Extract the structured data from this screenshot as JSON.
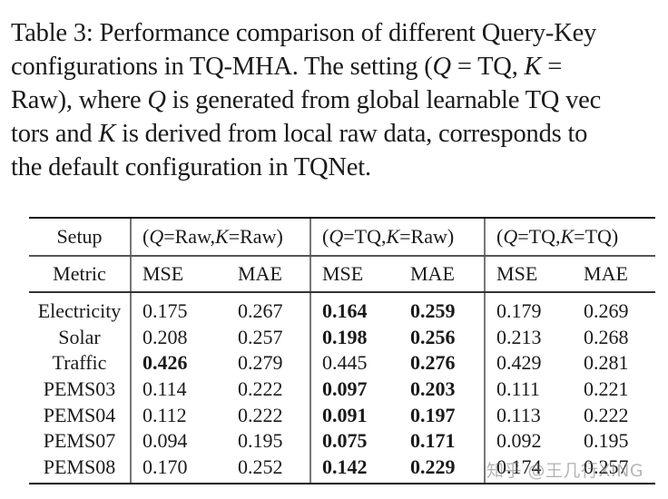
{
  "caption": {
    "lines": [
      "Table 3: Performance comparison of different Query-Key",
      "configurations in TQ-MHA. The setting (Q = TQ, K =",
      "Raw), where Q is generated from global learnable TQ vec-",
      "tors and K is derived from local raw data, corresponds to",
      "the default configuration in TQNet."
    ],
    "l1": "Table 3: Performance comparison of different Query-Key",
    "l2a": "configurations in TQ-MHA. The setting (",
    "l2q": "Q",
    "l2b": " = TQ, ",
    "l2k": "K",
    "l2c": " =",
    "l3a": "Raw), where ",
    "l3q": "Q",
    "l3b": " is generated from global learnable TQ vec",
    "l4a": "tors and ",
    "l4k": "K",
    "l4b": " is derived from local raw data, corresponds to",
    "l5": "the default configuration in TQNet."
  },
  "table": {
    "setup_label": "Setup",
    "metric_label": "Metric",
    "groups": [
      {
        "open": "(",
        "q": "Q",
        "eq1": "=Raw,",
        "k": "K",
        "eq2": "=Raw)"
      },
      {
        "open": "(",
        "q": "Q",
        "eq1": "=TQ,",
        "k": "K",
        "eq2": "=Raw)"
      },
      {
        "open": "(",
        "q": "Q",
        "eq1": "=TQ,",
        "k": "K",
        "eq2": "=TQ)"
      }
    ],
    "metrics": [
      "MSE",
      "MAE",
      "MSE",
      "MAE",
      "MSE",
      "MAE"
    ],
    "rows": [
      {
        "dataset": "Electricity",
        "values": [
          "0.175",
          "0.267",
          "0.164",
          "0.259",
          "0.179",
          "0.269"
        ],
        "bold": [
          false,
          false,
          true,
          true,
          false,
          false
        ]
      },
      {
        "dataset": "Solar",
        "values": [
          "0.208",
          "0.257",
          "0.198",
          "0.256",
          "0.213",
          "0.268"
        ],
        "bold": [
          false,
          false,
          true,
          true,
          false,
          false
        ]
      },
      {
        "dataset": "Traffic",
        "values": [
          "0.426",
          "0.279",
          "0.445",
          "0.276",
          "0.429",
          "0.281"
        ],
        "bold": [
          true,
          false,
          false,
          true,
          false,
          false
        ]
      },
      {
        "dataset": "PEMS03",
        "values": [
          "0.114",
          "0.222",
          "0.097",
          "0.203",
          "0.111",
          "0.221"
        ],
        "bold": [
          false,
          false,
          true,
          true,
          false,
          false
        ]
      },
      {
        "dataset": "PEMS04",
        "values": [
          "0.112",
          "0.222",
          "0.091",
          "0.197",
          "0.113",
          "0.222"
        ],
        "bold": [
          false,
          false,
          true,
          true,
          false,
          false
        ]
      },
      {
        "dataset": "PEMS07",
        "values": [
          "0.094",
          "0.195",
          "0.075",
          "0.171",
          "0.092",
          "0.195"
        ],
        "bold": [
          false,
          false,
          true,
          true,
          false,
          false
        ]
      },
      {
        "dataset": "PEMS08",
        "values": [
          "0.170",
          "0.252",
          "0.142",
          "0.229",
          "0.174",
          "0.257"
        ],
        "bold": [
          false,
          false,
          true,
          true,
          false,
          false
        ]
      }
    ]
  },
  "watermark": "知乎 @王几行XING"
}
